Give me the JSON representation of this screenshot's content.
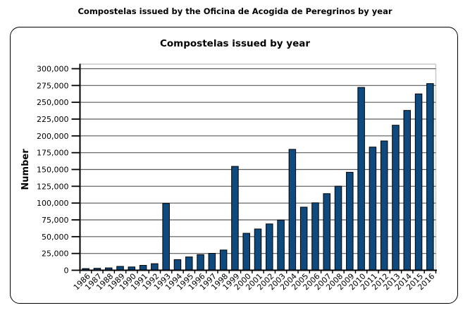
{
  "page": {
    "title": "Compostelas issued by the Oficina de Acogida de Peregrinos by year"
  },
  "chart_data": {
    "type": "bar",
    "title": "Compostelas issued by year",
    "xlabel": "",
    "ylabel": "Number",
    "categories": [
      "1986",
      "1987",
      "1988",
      "1989",
      "1990",
      "1991",
      "1992",
      "1993",
      "1994",
      "1995",
      "1996",
      "1997",
      "1998",
      "1999",
      "2000",
      "2001",
      "2002",
      "2003",
      "2004",
      "2005",
      "2006",
      "2007",
      "2008",
      "2009",
      "2010",
      "2011",
      "2012",
      "2013",
      "2014",
      "2015",
      "2016"
    ],
    "values": [
      2491,
      2905,
      3501,
      5760,
      4918,
      7274,
      9764,
      99436,
      15863,
      19821,
      23218,
      25179,
      30126,
      154613,
      55004,
      61418,
      68952,
      74614,
      179944,
      93924,
      100377,
      114026,
      125141,
      145877,
      272135,
      183366,
      192488,
      215880,
      237886,
      262516,
      277854
    ],
    "ylim": [
      0,
      300000
    ],
    "ytick_step": 25000,
    "ytick_labels": [
      "0",
      "25,000",
      "50,000",
      "75,000",
      "100,000",
      "125,000",
      "150,000",
      "175,000",
      "200,000",
      "225,000",
      "250,000",
      "275,000",
      "300,000"
    ],
    "grid": true,
    "legend": false,
    "colors": {
      "bar_fill": "#0E4A7E",
      "bar_border": "#000000",
      "gridline": "#595959",
      "plot_border": "#C8C8C8",
      "axis": "#000000",
      "text": "#000000",
      "background": "#FFFFFF"
    }
  }
}
